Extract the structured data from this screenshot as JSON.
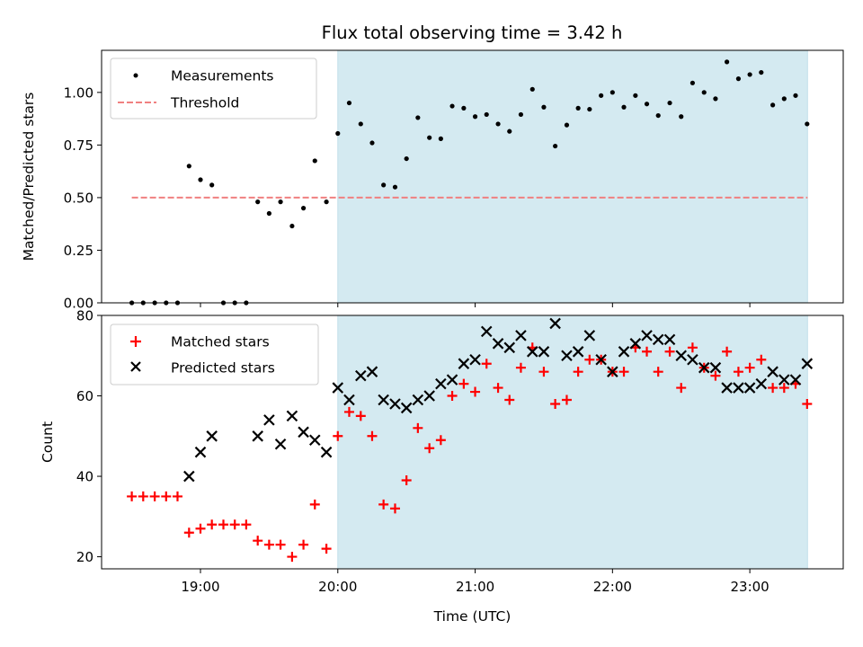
{
  "chart_data": [
    {
      "type": "scatter",
      "title": "Flux total observing time = 3.42 h",
      "xlabel": "",
      "ylabel": "Matched/Predicted stars",
      "xlim": [
        18.28,
        23.68
      ],
      "ylim": [
        0,
        1.2
      ],
      "yticks": [
        0.0,
        0.25,
        0.5,
        0.75,
        1.0
      ],
      "ytick_labels": [
        "0.00",
        "0.25",
        "0.50",
        "0.75",
        "1.00"
      ],
      "shaded_region": {
        "from": 20.0,
        "to": 23.42,
        "color": "#d4eaf1"
      },
      "legend": {
        "position": "top-left"
      },
      "series": [
        {
          "name": "Measurements",
          "marker": "dot",
          "color": "#000000",
          "x": [
            18.5,
            18.583,
            18.667,
            18.75,
            18.833,
            18.917,
            19.0,
            19.083,
            19.167,
            19.25,
            19.333,
            19.417,
            19.5,
            19.583,
            19.667,
            19.75,
            19.833,
            19.917,
            20.0,
            20.083,
            20.167,
            20.25,
            20.333,
            20.417,
            20.5,
            20.583,
            20.667,
            20.75,
            20.833,
            20.917,
            21.0,
            21.083,
            21.167,
            21.25,
            21.333,
            21.417,
            21.5,
            21.583,
            21.667,
            21.75,
            21.833,
            21.917,
            22.0,
            22.083,
            22.167,
            22.25,
            22.333,
            22.417,
            22.5,
            22.583,
            22.667,
            22.75,
            22.833,
            22.917,
            23.0,
            23.083,
            23.167,
            23.25,
            23.333,
            23.417
          ],
          "y": [
            0.0,
            0.0,
            0.0,
            0.0,
            0.0,
            0.65,
            0.585,
            0.56,
            0.0,
            0.0,
            0.0,
            0.48,
            0.425,
            0.48,
            0.365,
            0.45,
            0.675,
            0.48,
            0.805,
            0.95,
            0.85,
            0.76,
            0.56,
            0.55,
            0.685,
            0.88,
            0.785,
            0.78,
            0.935,
            0.925,
            0.885,
            0.895,
            0.85,
            0.815,
            0.895,
            1.015,
            0.93,
            0.745,
            0.845,
            0.925,
            0.92,
            0.985,
            1.0,
            0.93,
            0.985,
            0.945,
            0.89,
            0.95,
            0.885,
            1.045,
            1.0,
            0.97,
            1.145,
            1.065,
            1.085,
            1.095,
            0.94,
            0.97,
            0.985,
            0.85
          ]
        },
        {
          "name": "Threshold",
          "marker": "dashed-line",
          "color": "#f08080",
          "x": [
            18.5,
            23.42
          ],
          "y": [
            0.5,
            0.5
          ]
        }
      ]
    },
    {
      "type": "scatter",
      "title": "",
      "xlabel": "Time (UTC)",
      "ylabel": "Count",
      "xlim": [
        18.28,
        23.68
      ],
      "ylim": [
        17,
        80
      ],
      "yticks": [
        20,
        40,
        60,
        80
      ],
      "ytick_labels": [
        "20",
        "40",
        "60",
        "80"
      ],
      "xticks": [
        19,
        20,
        21,
        22,
        23
      ],
      "xtick_labels": [
        "19:00",
        "20:00",
        "21:00",
        "22:00",
        "23:00"
      ],
      "shaded_region": {
        "from": 20.0,
        "to": 23.42,
        "color": "#d4eaf1"
      },
      "legend": {
        "position": "top-left"
      },
      "series": [
        {
          "name": "Matched stars",
          "marker": "plus",
          "color": "#ff0000",
          "x": [
            18.5,
            18.583,
            18.667,
            18.75,
            18.833,
            18.917,
            19.0,
            19.083,
            19.167,
            19.25,
            19.333,
            19.417,
            19.5,
            19.583,
            19.667,
            19.75,
            19.833,
            19.917,
            20.0,
            20.083,
            20.167,
            20.25,
            20.333,
            20.417,
            20.5,
            20.583,
            20.667,
            20.75,
            20.833,
            20.917,
            21.0,
            21.083,
            21.167,
            21.25,
            21.333,
            21.417,
            21.5,
            21.583,
            21.667,
            21.75,
            21.833,
            21.917,
            22.0,
            22.083,
            22.167,
            22.25,
            22.333,
            22.417,
            22.5,
            22.583,
            22.667,
            22.75,
            22.833,
            22.917,
            23.0,
            23.083,
            23.167,
            23.25,
            23.333,
            23.417
          ],
          "y": [
            35,
            35,
            35,
            35,
            35,
            26,
            27,
            28,
            28,
            28,
            28,
            24,
            23,
            23,
            20,
            23,
            33,
            22,
            50,
            56,
            55,
            50,
            33,
            32,
            39,
            52,
            47,
            49,
            60,
            63,
            61,
            68,
            62,
            59,
            67,
            72,
            66,
            58,
            59,
            66,
            69,
            69,
            66,
            66,
            72,
            71,
            66,
            71,
            62,
            72,
            67,
            65,
            71,
            66,
            67,
            69,
            62,
            62,
            63,
            58
          ]
        },
        {
          "name": "Predicted stars",
          "marker": "x",
          "color": "#000000",
          "x": [
            18.917,
            19.0,
            19.083,
            19.417,
            19.5,
            19.583,
            19.667,
            19.75,
            19.833,
            19.917,
            20.0,
            20.083,
            20.167,
            20.25,
            20.333,
            20.417,
            20.5,
            20.583,
            20.667,
            20.75,
            20.833,
            20.917,
            21.0,
            21.083,
            21.167,
            21.25,
            21.333,
            21.417,
            21.5,
            21.583,
            21.667,
            21.75,
            21.833,
            21.917,
            22.0,
            22.083,
            22.167,
            22.25,
            22.333,
            22.417,
            22.5,
            22.583,
            22.667,
            22.75,
            22.833,
            22.917,
            23.0,
            23.083,
            23.167,
            23.25,
            23.333,
            23.417
          ],
          "y": [
            40,
            46,
            50,
            50,
            54,
            48,
            55,
            51,
            49,
            46,
            62,
            59,
            65,
            66,
            59,
            58,
            57,
            59,
            60,
            63,
            64,
            68,
            69,
            76,
            73,
            72,
            75,
            71,
            71,
            78,
            70,
            71,
            75,
            69,
            66,
            71,
            73,
            75,
            74,
            74,
            70,
            69,
            67,
            67,
            62,
            62,
            62,
            63,
            66,
            64,
            64,
            68
          ]
        }
      ]
    }
  ]
}
